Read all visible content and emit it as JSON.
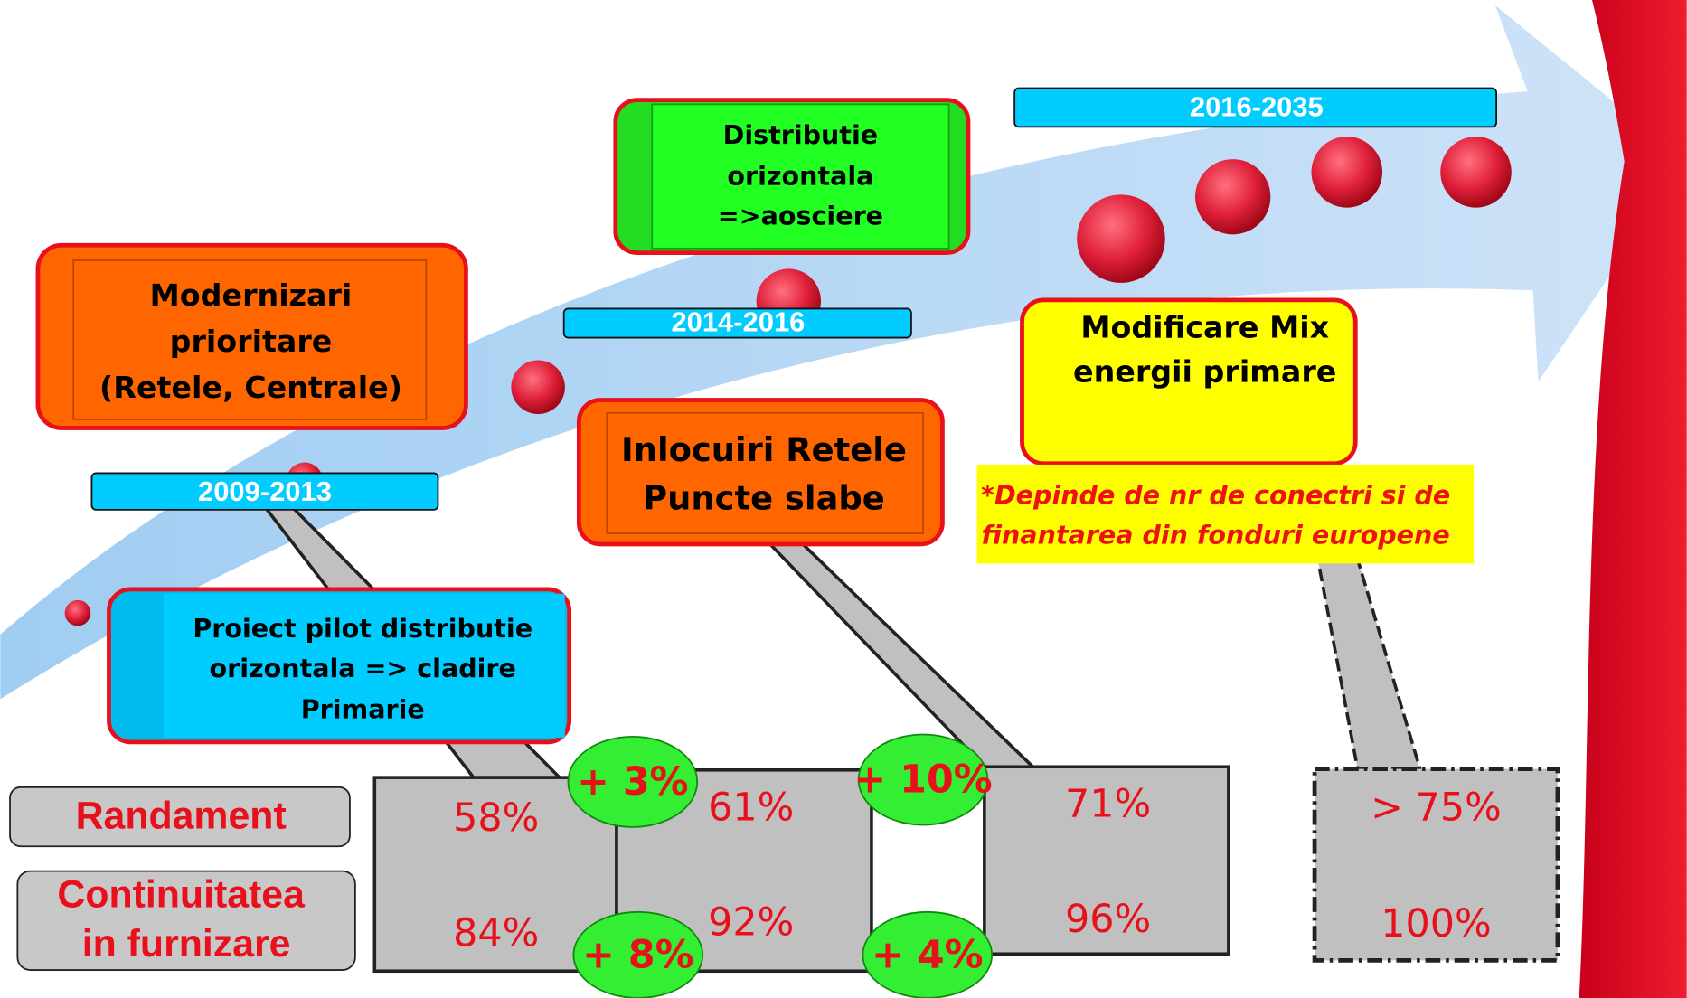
{
  "periods": [
    "2009-2013",
    "2014-2016",
    "2016-2035"
  ],
  "boxes": {
    "modernizari": [
      "Modernizari",
      "prioritare",
      "(Retele, Centrale)"
    ],
    "distributie": [
      "Distributie",
      "orizontala",
      "=>aosciere"
    ],
    "inlocuiri": [
      "Inlocuiri Retele",
      "Puncte slabe"
    ],
    "modificare": [
      "Modificare Mix",
      "energii primare"
    ],
    "proiect": [
      "Proiect pilot distributie",
      "orizontala => cladire",
      "Primarie"
    ]
  },
  "note": [
    "*Depinde de nr de conectri si de",
    "finantarea din fonduri europene"
  ],
  "row_labels": {
    "randament": [
      "Randament"
    ],
    "continuitate": [
      "Continuitatea",
      "in furnizare"
    ]
  },
  "randament": [
    "58%",
    "61%",
    "71%",
    "> 75%"
  ],
  "continuitate": [
    "84%",
    "92%",
    "96%",
    "100%"
  ],
  "increments": {
    "randament": [
      "+ 3%",
      "+ 10%"
    ],
    "continuitate": [
      "+ 8%",
      "+ 4%"
    ]
  }
}
